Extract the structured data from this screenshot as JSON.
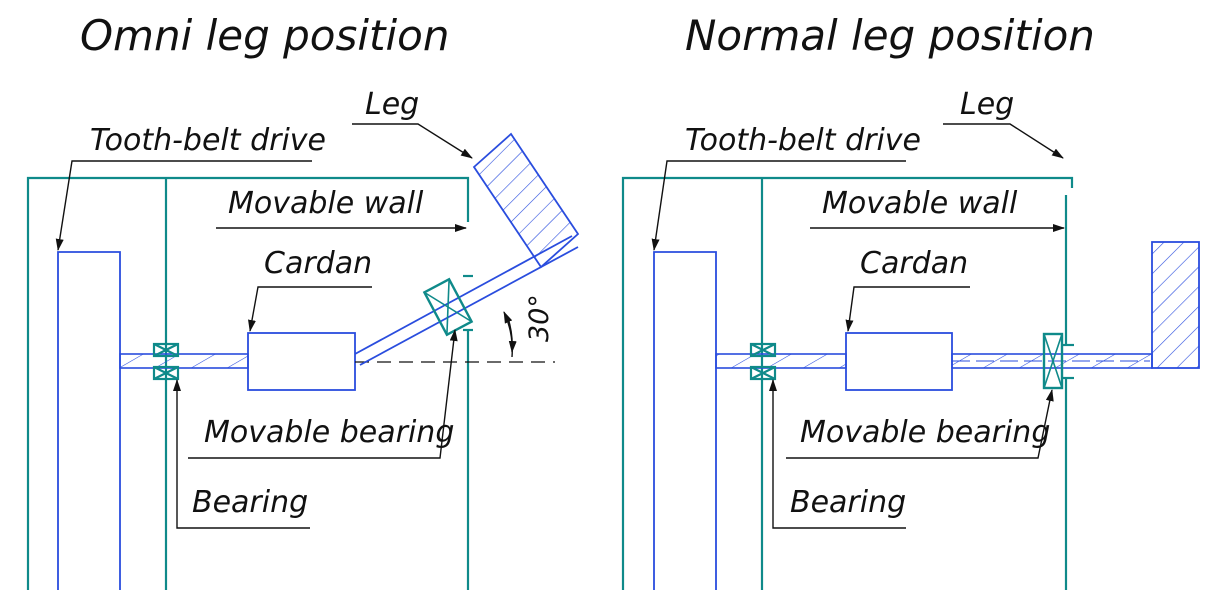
{
  "left_panel": {
    "title": "Omni leg position",
    "labels": {
      "leg": "Leg",
      "tooth_belt_drive": "Tooth-belt drive",
      "movable_wall": "Movable wall",
      "cardan": "Cardan",
      "movable_bearing": "Movable bearing",
      "bearing": "Bearing",
      "angle": "30°"
    }
  },
  "right_panel": {
    "title": "Normal leg position",
    "labels": {
      "leg": "Leg",
      "tooth_belt_drive": "Tooth-belt drive",
      "movable_wall": "Movable wall",
      "cardan": "Cardan",
      "movable_bearing": "Movable bearing",
      "bearing": "Bearing"
    }
  },
  "colors": {
    "frame": "#0f8a8a",
    "parts": "#2a4dde",
    "annotation": "#111111"
  }
}
